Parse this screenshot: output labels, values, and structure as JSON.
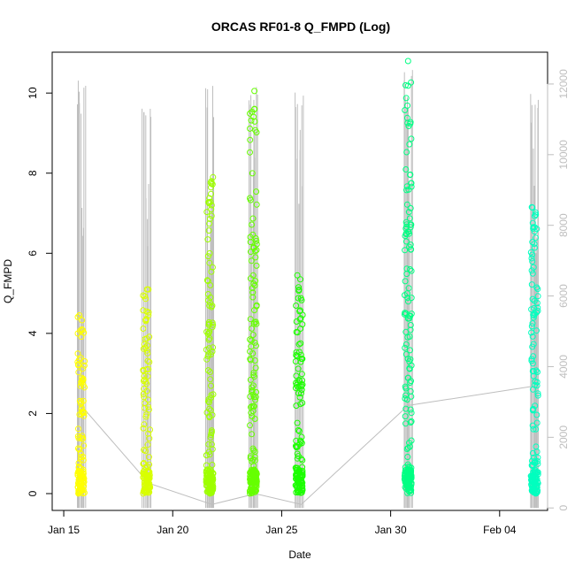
{
  "chart_data": {
    "type": "scatter",
    "title": "ORCAS RF01-8 Q_FMPD (Log)",
    "xlabel": "Date",
    "ylabel": "Q_FMPD",
    "x_ticks": [
      {
        "day": 15,
        "label": "Jan 15"
      },
      {
        "day": 20,
        "label": "Jan 20"
      },
      {
        "day": 25,
        "label": "Jan 25"
      },
      {
        "day": 30,
        "label": "Jan 30"
      },
      {
        "day": 35,
        "label": "Feb 04"
      }
    ],
    "y_ticks": [
      0,
      2,
      4,
      6,
      8,
      10
    ],
    "y2_ticks": [
      0,
      2000,
      4000,
      6000,
      8000,
      10000,
      12000
    ],
    "xlim": [
      14.47,
      37.2
    ],
    "ylim": [
      -0.42,
      11.02
    ],
    "y2lim": [
      -70,
      12900
    ],
    "colors": {
      "axis": "#000000",
      "secondary_axis": "#bebebe",
      "trace": "#bebebe",
      "flight_colors": [
        "#ffff00",
        "#d8ff00",
        "#9eff00",
        "#66ff00",
        "#1cff00",
        "#00ff83",
        "#00ffbf"
      ]
    },
    "series": [
      {
        "day": 15.8,
        "color": "#ffff00",
        "q_max": 4.45,
        "secondary_max": 12100
      },
      {
        "day": 18.8,
        "color": "#d8ff00",
        "q_max": 5.1,
        "secondary_max": 11800
      },
      {
        "day": 21.7,
        "color": "#9eff00",
        "q_max": 7.9,
        "secondary_max": 12000
      },
      {
        "day": 23.7,
        "color": "#66ff00",
        "q_max": 10.05,
        "secondary_max": 12400
      },
      {
        "day": 25.8,
        "color": "#1cff00",
        "q_max": 5.45,
        "secondary_max": 11800
      },
      {
        "day": 30.8,
        "color": "#00ff83",
        "q_max": 10.8,
        "secondary_max": 12400
      },
      {
        "day": 36.6,
        "color": "#00ffbf",
        "q_max": 7.15,
        "secondary_max": 11850
      }
    ],
    "trace_means": [
      {
        "day": 15.8,
        "value": 2900
      },
      {
        "day": 18.9,
        "value": 700
      },
      {
        "day": 21.8,
        "value": 100
      },
      {
        "day": 23.8,
        "value": 400
      },
      {
        "day": 25.9,
        "value": 100
      },
      {
        "day": 30.8,
        "value": 2900
      },
      {
        "day": 36.6,
        "value": 3450
      }
    ]
  }
}
